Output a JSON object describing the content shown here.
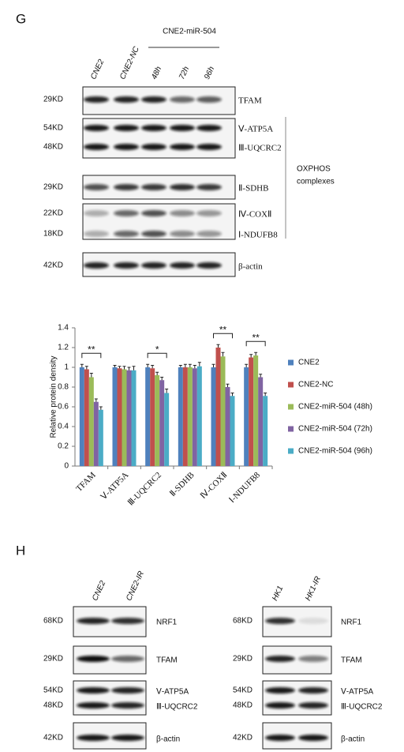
{
  "panel_g": {
    "label": "G",
    "group_label": "CNE2-miR-504",
    "lanes": [
      "CNE2",
      "CNE2-NC",
      "48h",
      "72h",
      "96h"
    ],
    "blots": [
      {
        "rows": [
          {
            "size": "29KD",
            "protein": "TFAM"
          }
        ]
      },
      {
        "rows": [
          {
            "size": "54KD",
            "protein": "Ⅴ-ATP5A"
          },
          {
            "size": "48KD",
            "protein": "Ⅲ-UQCRC2"
          }
        ]
      },
      {
        "rows": [
          {
            "size": "29KD",
            "protein": "Ⅱ-SDHB"
          }
        ]
      },
      {
        "rows": [
          {
            "size": "22KD",
            "protein": "Ⅳ-COXⅡ"
          },
          {
            "size": "18KD",
            "protein": "Ⅰ-NDUFB8"
          }
        ]
      },
      {
        "rows": [
          {
            "size": "42KD",
            "protein": "β-actin"
          }
        ]
      }
    ],
    "bracket_label": [
      "OXPHOS",
      "complexes"
    ]
  },
  "chart_data": {
    "type": "bar",
    "y_label": "Relative protein density",
    "categories": [
      "TFAM",
      "Ⅴ-ATP5A",
      "Ⅲ-UQCRC2",
      "Ⅱ-SDHB",
      "Ⅳ-COXⅡ",
      "Ⅰ-NDUFB8"
    ],
    "series": [
      {
        "name": "CNE2",
        "color": "#4f81bd",
        "values": [
          1.0,
          1.0,
          1.0,
          1.0,
          1.0,
          1.0
        ],
        "errors": [
          0.03,
          0.02,
          0.03,
          0.02,
          0.03,
          0.03
        ]
      },
      {
        "name": "CNE2-NC",
        "color": "#c0504d",
        "values": [
          0.98,
          0.99,
          0.99,
          1.0,
          1.2,
          1.1
        ],
        "errors": [
          0.03,
          0.02,
          0.03,
          0.03,
          0.03,
          0.03
        ]
      },
      {
        "name": "CNE2-miR-504 (48h)",
        "color": "#9bbb59",
        "values": [
          0.9,
          0.98,
          0.92,
          1.0,
          1.11,
          1.12
        ],
        "errors": [
          0.04,
          0.03,
          0.03,
          0.03,
          0.04,
          0.03
        ]
      },
      {
        "name": "CNE2-miR-504 (72h)",
        "color": "#8064a2",
        "values": [
          0.65,
          0.97,
          0.87,
          0.99,
          0.8,
          0.9
        ],
        "errors": [
          0.03,
          0.03,
          0.03,
          0.03,
          0.03,
          0.03
        ]
      },
      {
        "name": "CNE2-miR-504 (96h)",
        "color": "#4bacc6",
        "values": [
          0.57,
          0.97,
          0.74,
          1.01,
          0.71,
          0.71
        ],
        "errors": [
          0.03,
          0.04,
          0.04,
          0.04,
          0.03,
          0.03
        ]
      }
    ],
    "significance": [
      "**",
      null,
      "*",
      null,
      "**",
      "**"
    ],
    "ylim": [
      0,
      1.4
    ],
    "yticks": [
      0,
      0.2,
      0.4,
      0.6,
      0.8,
      1,
      1.2,
      1.4
    ],
    "grid": false
  },
  "panel_h": {
    "label": "H",
    "left": {
      "lanes": [
        "CNE2",
        "CNE2-IR"
      ],
      "blots": [
        {
          "rows": [
            {
              "size": "68KD",
              "protein": "NRF1"
            }
          ]
        },
        {
          "rows": [
            {
              "size": "29KD",
              "protein": "TFAM"
            }
          ]
        },
        {
          "rows": [
            {
              "size": "54KD",
              "protein": "Ⅴ-ATP5A"
            },
            {
              "size": "48KD",
              "protein": "Ⅲ-UQCRC2"
            }
          ]
        },
        {
          "rows": [
            {
              "size": "42KD",
              "protein": "β-actin"
            }
          ]
        }
      ]
    },
    "right": {
      "lanes": [
        "HK1",
        "HK1-IR"
      ],
      "blots": [
        {
          "rows": [
            {
              "size": "68KD",
              "protein": "NRF1"
            }
          ]
        },
        {
          "rows": [
            {
              "size": "29KD",
              "protein": "TFAM"
            }
          ]
        },
        {
          "rows": [
            {
              "size": "54KD",
              "protein": "Ⅴ-ATP5A"
            },
            {
              "size": "48KD",
              "protein": "Ⅲ-UQCRC2"
            }
          ]
        },
        {
          "rows": [
            {
              "size": "42KD",
              "protein": "β-actin"
            }
          ]
        }
      ]
    }
  }
}
